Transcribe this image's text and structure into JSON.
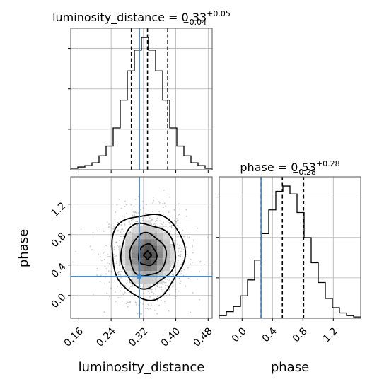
{
  "chart_data": {
    "type": "corner",
    "parameters": [
      "luminosity_distance",
      "phase"
    ],
    "truths": {
      "luminosity_distance": 0.31,
      "phase": 0.25
    },
    "marginals": [
      {
        "parameter": "luminosity_distance",
        "title_name": "luminosity_distance",
        "title_value": "0.33",
        "title_plus": "+0.05",
        "title_minus": "−0.04",
        "quantiles": [
          0.29,
          0.33,
          0.38
        ],
        "xlim": [
          0.14,
          0.49
        ],
        "bin_edges": [
          0.14,
          0.1575,
          0.175,
          0.1925,
          0.21,
          0.2275,
          0.245,
          0.2625,
          0.28,
          0.2975,
          0.315,
          0.3325,
          0.35,
          0.3675,
          0.385,
          0.4025,
          0.42,
          0.4375,
          0.455,
          0.4725,
          0.49
        ],
        "counts": [
          1,
          2,
          3,
          5,
          10,
          17,
          30,
          50,
          71,
          86,
          95,
          86,
          71,
          50,
          30,
          17,
          10,
          5,
          3,
          1
        ]
      },
      {
        "parameter": "phase",
        "title_name": "phase",
        "title_value": "0.53",
        "title_plus": "+0.28",
        "title_minus": "−0.28",
        "quantiles": [
          0.25,
          0.53,
          0.81
        ],
        "xlim": [
          -0.3,
          1.56
        ],
        "bin_edges": [
          -0.3,
          -0.207,
          -0.114,
          -0.021,
          0.072,
          0.165,
          0.258,
          0.351,
          0.444,
          0.537,
          0.63,
          0.723,
          0.816,
          0.909,
          1.002,
          1.095,
          1.188,
          1.281,
          1.374,
          1.467,
          1.56
        ],
        "counts": [
          2,
          5,
          9,
          17,
          29,
          44,
          64,
          82,
          96,
          100,
          94,
          80,
          61,
          42,
          27,
          15,
          8,
          4,
          2,
          1
        ]
      }
    ],
    "joint": {
      "x_parameter": "luminosity_distance",
      "y_parameter": "phase",
      "xlim": [
        0.14,
        0.49
      ],
      "ylim": [
        -0.3,
        1.56
      ],
      "center": [
        0.33,
        0.53
      ],
      "sigma": [
        0.045,
        0.28
      ]
    },
    "axes": {
      "luminosity_distance": {
        "label": "luminosity_distance",
        "ticks": [
          0.16,
          0.24,
          0.32,
          0.4,
          0.48
        ],
        "tick_labels": [
          "0.16",
          "0.24",
          "0.32",
          "0.40",
          "0.48"
        ]
      },
      "phase": {
        "label": "phase",
        "ticks": [
          0.0,
          0.4,
          0.8,
          1.2
        ],
        "tick_labels": [
          "0.0",
          "0.4",
          "0.8",
          "1.2"
        ]
      }
    },
    "grid": true
  }
}
